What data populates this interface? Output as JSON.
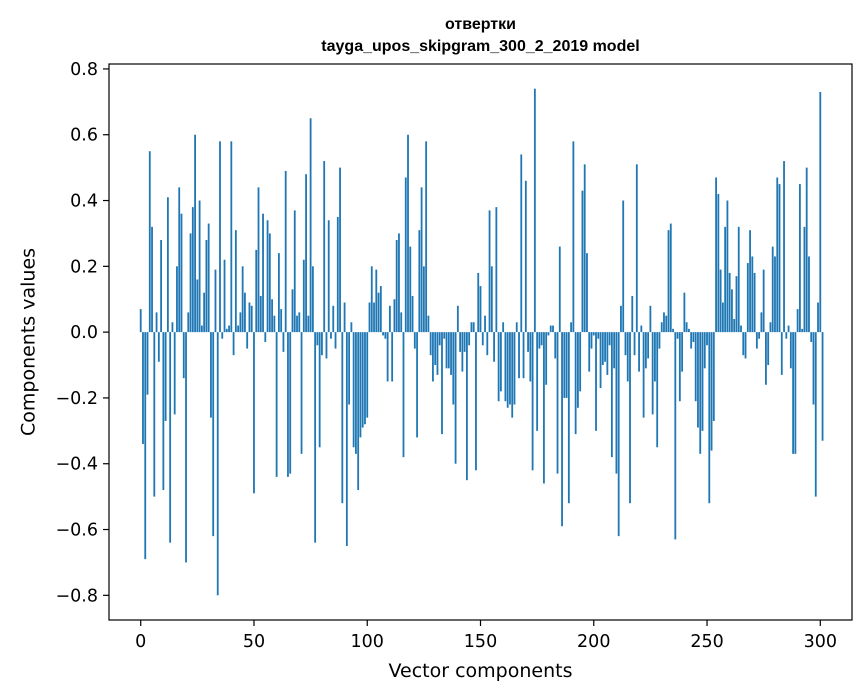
{
  "chart_data": {
    "type": "bar",
    "title": "отвертки",
    "subtitle": "tayga_upos_skipgram_300_2_2019 model",
    "xlabel": "Vector components",
    "ylabel": "Components values",
    "xlim": [
      -14,
      314
    ],
    "ylim": [
      -0.875,
      0.815
    ],
    "grid": false,
    "bar_color": "#1f77b4",
    "x_ticks": [
      0,
      50,
      100,
      150,
      200,
      250,
      300
    ],
    "x_tick_labels": [
      "0",
      "50",
      "100",
      "150",
      "200",
      "250",
      "300"
    ],
    "y_ticks": [
      -0.8,
      -0.6,
      -0.4,
      -0.2,
      0.0,
      0.2,
      0.4,
      0.6,
      0.8
    ],
    "y_tick_labels": [
      "−0.8",
      "−0.6",
      "−0.4",
      "−0.2",
      "0.0",
      "0.2",
      "0.4",
      "0.6",
      "0.8"
    ],
    "series": [
      {
        "values": [
          0.07,
          -0.34,
          -0.69,
          -0.19,
          0.55,
          0.32,
          -0.5,
          0.06,
          -0.09,
          0.28,
          -0.48,
          -0.27,
          0.41,
          -0.64,
          0.03,
          -0.25,
          0.2,
          0.44,
          0.36,
          -0.14,
          -0.7,
          0.06,
          0.3,
          0.38,
          0.6,
          0.16,
          0.4,
          0.02,
          0.12,
          0.28,
          0.33,
          -0.26,
          -0.62,
          0.19,
          -0.8,
          0.58,
          -0.02,
          0.22,
          0.01,
          0.02,
          0.58,
          -0.07,
          0.31,
          0.02,
          0.06,
          0.2,
          0.12,
          -0.05,
          0.09,
          0.08,
          -0.49,
          0.25,
          0.44,
          0.11,
          0.36,
          -0.03,
          0.34,
          0.3,
          0.1,
          0.05,
          -0.44,
          0.24,
          0.07,
          -0.06,
          0.49,
          -0.44,
          -0.43,
          0.13,
          0.37,
          0.05,
          0.06,
          -0.37,
          0.22,
          0.48,
          0.05,
          0.65,
          0.2,
          -0.64,
          -0.04,
          -0.35,
          -0.07,
          0.52,
          -0.08,
          0.34,
          -0.02,
          0.08,
          -0.05,
          0.35,
          0.5,
          -0.52,
          0.09,
          -0.65,
          -0.22,
          0.03,
          -0.35,
          -0.37,
          -0.48,
          -0.32,
          -0.29,
          -0.28,
          -0.26,
          0.09,
          0.2,
          0.09,
          0.19,
          0.12,
          0.14,
          -0.01,
          -0.02,
          -0.15,
          0.08,
          -0.15,
          0.1,
          0.28,
          0.3,
          0.06,
          -0.38,
          0.47,
          0.6,
          0.26,
          0.11,
          -0.05,
          -0.32,
          0.31,
          0.44,
          0.2,
          0.58,
          0.05,
          -0.07,
          -0.15,
          -0.1,
          -0.13,
          -0.04,
          -0.31,
          -0.02,
          -0.11,
          -0.11,
          -0.13,
          -0.22,
          -0.4,
          0.08,
          -0.06,
          -0.12,
          -0.06,
          -0.45,
          -0.04,
          0.03,
          0.03,
          -0.42,
          0.18,
          0.14,
          -0.04,
          0.05,
          -0.07,
          0.37,
          0.2,
          -0.09,
          0.38,
          -0.21,
          -0.18,
          0.03,
          -0.21,
          -0.23,
          -0.22,
          -0.26,
          -0.22,
          0.03,
          -0.14,
          0.54,
          -0.14,
          0.46,
          -0.06,
          -0.15,
          -0.42,
          0.74,
          -0.3,
          -0.05,
          -0.04,
          -0.46,
          -0.16,
          -0.01,
          0.02,
          0.02,
          -0.08,
          -0.43,
          0.26,
          -0.59,
          -0.2,
          -0.2,
          -0.52,
          0.03,
          0.58,
          -0.31,
          -0.23,
          -0.18,
          0.43,
          0.51,
          0.24,
          -0.12,
          -0.05,
          -0.01,
          -0.3,
          -0.02,
          -0.17,
          -0.1,
          -0.09,
          -0.13,
          -0.04,
          -0.38,
          -0.11,
          -0.43,
          -0.62,
          0.08,
          0.4,
          -0.07,
          -0.15,
          -0.52,
          0.11,
          -0.07,
          0.51,
          -0.12,
          0.02,
          -0.26,
          -0.11,
          -0.08,
          0.08,
          -0.25,
          -0.15,
          -0.35,
          -0.05,
          0.03,
          0.06,
          0.05,
          0.31,
          0.33,
          0.01,
          -0.63,
          -0.02,
          -0.21,
          -0.12,
          0.12,
          0.03,
          0.01,
          -0.05,
          -0.03,
          -0.21,
          -0.29,
          -0.37,
          -0.3,
          -0.11,
          -0.04,
          -0.52,
          -0.36,
          -0.27,
          0.47,
          0.42,
          0.19,
          0.09,
          0.32,
          0.4,
          0.18,
          0.13,
          0.04,
          0.17,
          0.32,
          0.02,
          -0.07,
          -0.08,
          0.21,
          0.31,
          0.23,
          0.18,
          -0.05,
          -0.02,
          0.06,
          0.19,
          -0.16,
          -0.1,
          0.03,
          0.26,
          0.23,
          0.47,
          0.45,
          -0.13,
          0.52,
          -0.02,
          0.02,
          -0.11,
          -0.37,
          -0.37,
          0.07,
          0.45,
          0.01,
          0.32,
          0.5,
          0.23,
          -0.03,
          -0.22,
          -0.5,
          0.09,
          0.73,
          -0.33
        ]
      }
    ]
  }
}
